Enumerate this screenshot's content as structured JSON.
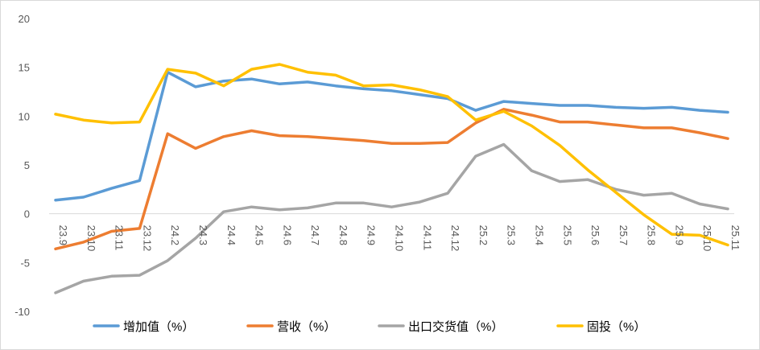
{
  "chart_data": {
    "type": "line",
    "title": "",
    "xlabel": "",
    "ylabel": "",
    "ylim": [
      -10,
      20
    ],
    "yticks": [
      "-10",
      "-5",
      "0",
      "5",
      "10",
      "15",
      "20"
    ],
    "grid": false,
    "legend_position": "bottom",
    "categories": [
      "23.9",
      "23.10",
      "23.11",
      "23.12",
      "24.2",
      "24.3",
      "24.4",
      "24.5",
      "24.6",
      "24.7",
      "24.8",
      "24.9",
      "24.10",
      "24.11",
      "24.12",
      "25.2",
      "25.3",
      "25.4",
      "25.5",
      "25.6",
      "25.7",
      "25.8",
      "25.9",
      "25.10",
      "25.11"
    ],
    "series": [
      {
        "name": "增加值（%）",
        "color": "#5b9bd5",
        "values": [
          1.4,
          1.7,
          2.6,
          3.4,
          14.5,
          13.0,
          13.6,
          13.8,
          13.3,
          13.5,
          13.1,
          12.8,
          12.6,
          12.2,
          11.8,
          10.6,
          11.5,
          11.3,
          11.1,
          11.1,
          10.9,
          10.8,
          10.9,
          10.6,
          10.4
        ]
      },
      {
        "name": "营收（%）",
        "color": "#ed7d31",
        "values": [
          -3.6,
          -2.9,
          -1.8,
          -1.5,
          8.2,
          6.7,
          7.9,
          8.5,
          8.0,
          7.9,
          7.7,
          7.5,
          7.2,
          7.2,
          7.3,
          9.3,
          10.7,
          10.1,
          9.4,
          9.4,
          9.1,
          8.8,
          8.8,
          8.3,
          7.7
        ]
      },
      {
        "name": "出口交货值（%）",
        "color": "#a5a5a5",
        "values": [
          -8.1,
          -6.9,
          -6.4,
          -6.3,
          -4.8,
          -2.5,
          0.2,
          0.7,
          0.4,
          0.6,
          1.1,
          1.1,
          0.7,
          1.2,
          2.1,
          5.9,
          7.1,
          4.4,
          3.3,
          3.5,
          2.5,
          1.9,
          2.1,
          1.0,
          0.5
        ]
      },
      {
        "name": "固投（%）",
        "color": "#ffc000",
        "values": [
          10.2,
          9.6,
          9.3,
          9.4,
          14.8,
          14.4,
          13.1,
          14.8,
          15.3,
          14.5,
          14.2,
          13.1,
          13.2,
          12.7,
          12.0,
          9.6,
          10.5,
          9.0,
          7.0,
          4.5,
          2.2,
          -0.1,
          -2.1,
          -2.2,
          -3.2
        ]
      }
    ]
  }
}
